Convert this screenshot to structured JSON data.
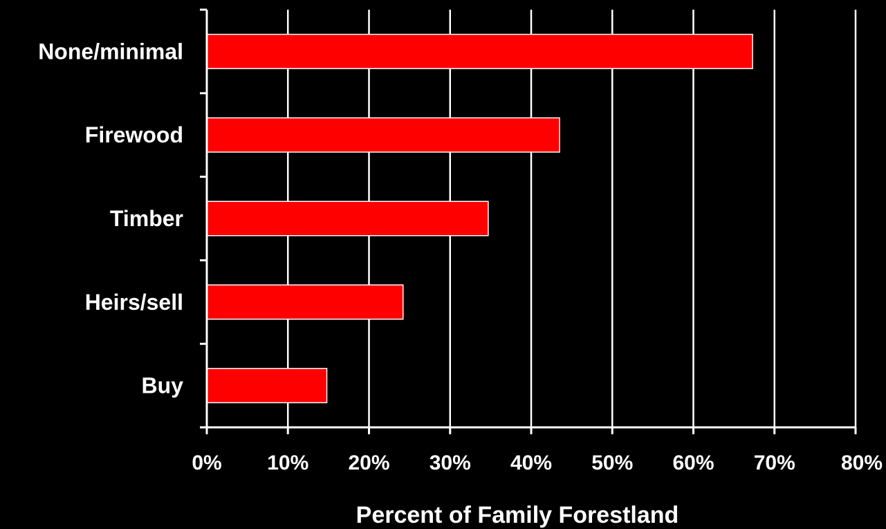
{
  "chart_data": {
    "type": "bar",
    "orientation": "horizontal",
    "categories": [
      "None/minimal",
      "Firewood",
      "Timber",
      "Heirs/sell",
      "Buy"
    ],
    "values": [
      67.3,
      43.5,
      34.7,
      24.2,
      14.8
    ],
    "value_unit": "%",
    "xlim": [
      0,
      80
    ],
    "x_ticks": [
      0,
      10,
      20,
      30,
      40,
      50,
      60,
      70,
      80
    ],
    "x_tick_labels": [
      "0%",
      "10%",
      "20%",
      "30%",
      "40%",
      "50%",
      "60%",
      "70%",
      "80%"
    ],
    "xlabel": "Percent of Family  Forestland",
    "ylabel": "",
    "title": "",
    "grid": "vertical",
    "legend": "none",
    "colors": {
      "background": "#000000",
      "bar_fill": "#ff0000",
      "bar_edge": "#ffffff",
      "grid": "#ffffff",
      "axis": "#ffffff",
      "text": "#ffffff"
    }
  }
}
